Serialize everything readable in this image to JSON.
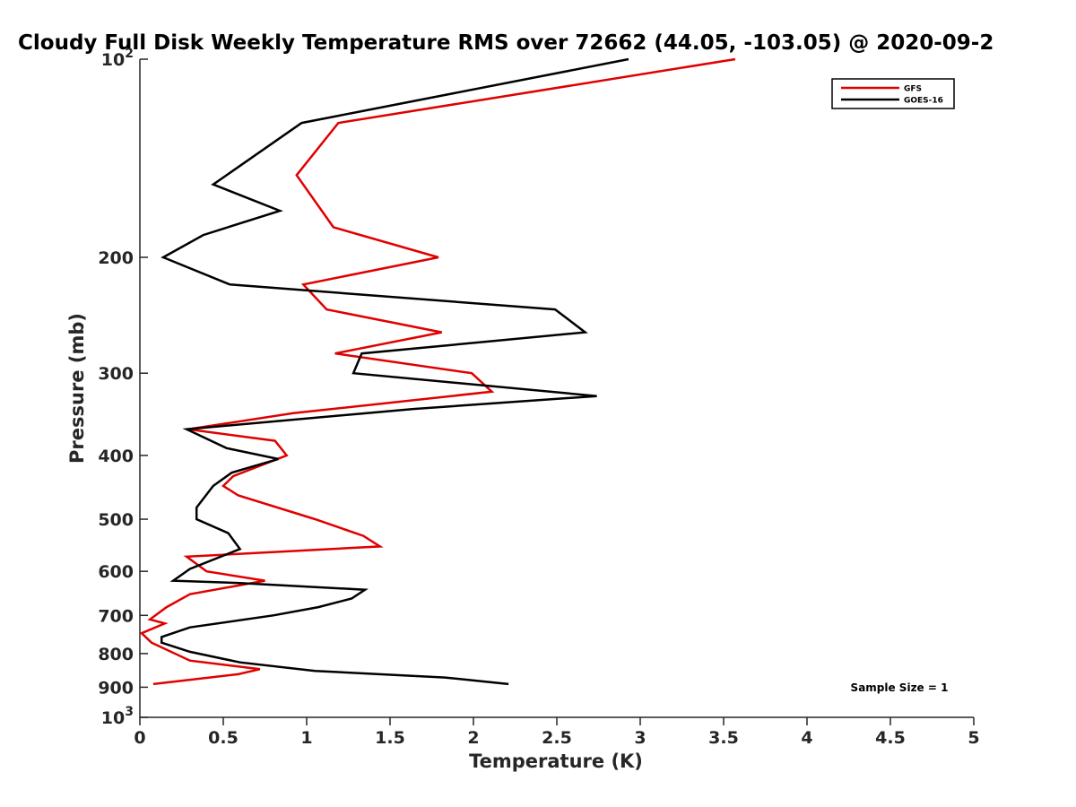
{
  "chart_data": {
    "type": "line",
    "title": "Cloudy Full Disk Weekly Temperature RMS over 72662 (44.05, -103.05) @ 2020-09-2",
    "xlabel": "Temperature (K)",
    "ylabel": "Pressure (mb)",
    "xlim": [
      0,
      5
    ],
    "ylim": [
      100,
      1000
    ],
    "y_scale": "log",
    "y_reversed": true,
    "x_ticks": [
      0,
      0.5,
      1,
      1.5,
      2,
      2.5,
      3,
      3.5,
      4,
      4.5,
      5
    ],
    "x_tick_labels": [
      "0",
      "0.5",
      "1",
      "1.5",
      "2",
      "2.5",
      "3",
      "3.5",
      "4",
      "4.5",
      "5"
    ],
    "y_ticks": [
      {
        "value": 100,
        "label": "10",
        "sup": "2"
      },
      {
        "value": 200,
        "label": "200",
        "sup": ""
      },
      {
        "value": 300,
        "label": "300",
        "sup": ""
      },
      {
        "value": 400,
        "label": "400",
        "sup": ""
      },
      {
        "value": 500,
        "label": "500",
        "sup": ""
      },
      {
        "value": 600,
        "label": "600",
        "sup": ""
      },
      {
        "value": 700,
        "label": "700",
        "sup": ""
      },
      {
        "value": 800,
        "label": "800",
        "sup": ""
      },
      {
        "value": 900,
        "label": "900",
        "sup": ""
      },
      {
        "value": 1000,
        "label": "10",
        "sup": "3"
      }
    ],
    "legend": {
      "position": "top-right"
    },
    "annotation": "Sample Size = 1",
    "series": [
      {
        "name": "GFS",
        "color": "#e00000",
        "points": [
          [
            3.57,
            100
          ],
          [
            1.19,
            125
          ],
          [
            0.94,
            150
          ],
          [
            1.16,
            180
          ],
          [
            1.79,
            200
          ],
          [
            0.98,
            220
          ],
          [
            1.12,
            240
          ],
          [
            1.81,
            260
          ],
          [
            1.17,
            280
          ],
          [
            1.99,
            300
          ],
          [
            2.11,
            320
          ],
          [
            0.92,
            345
          ],
          [
            0.29,
            365
          ],
          [
            0.81,
            380
          ],
          [
            0.88,
            400
          ],
          [
            0.56,
            430
          ],
          [
            0.5,
            445
          ],
          [
            0.59,
            460
          ],
          [
            1.05,
            500
          ],
          [
            1.34,
            530
          ],
          [
            1.44,
            550
          ],
          [
            0.28,
            570
          ],
          [
            0.4,
            600
          ],
          [
            0.75,
            620
          ],
          [
            0.3,
            650
          ],
          [
            0.16,
            680
          ],
          [
            0.06,
            710
          ],
          [
            0.15,
            720
          ],
          [
            0.01,
            745
          ],
          [
            0.07,
            770
          ],
          [
            0.3,
            820
          ],
          [
            0.72,
            845
          ],
          [
            0.59,
            860
          ],
          [
            0.08,
            890
          ]
        ]
      },
      {
        "name": "GOES-16",
        "color": "#000000",
        "points": [
          [
            2.93,
            100
          ],
          [
            0.97,
            125
          ],
          [
            0.44,
            155
          ],
          [
            0.84,
            170
          ],
          [
            0.38,
            185
          ],
          [
            0.14,
            200
          ],
          [
            0.54,
            220
          ],
          [
            2.49,
            240
          ],
          [
            2.67,
            260
          ],
          [
            1.33,
            280
          ],
          [
            1.28,
            300
          ],
          [
            2.74,
            325
          ],
          [
            1.64,
            340
          ],
          [
            0.28,
            365
          ],
          [
            0.52,
            390
          ],
          [
            0.83,
            405
          ],
          [
            0.55,
            425
          ],
          [
            0.44,
            445
          ],
          [
            0.34,
            480
          ],
          [
            0.34,
            500
          ],
          [
            0.53,
            525
          ],
          [
            0.6,
            555
          ],
          [
            0.3,
            595
          ],
          [
            0.2,
            620
          ],
          [
            0.6,
            625
          ],
          [
            1.35,
            640
          ],
          [
            1.27,
            660
          ],
          [
            1.07,
            680
          ],
          [
            0.8,
            700
          ],
          [
            0.3,
            730
          ],
          [
            0.13,
            755
          ],
          [
            0.13,
            770
          ],
          [
            0.3,
            795
          ],
          [
            0.6,
            825
          ],
          [
            1.05,
            850
          ],
          [
            1.83,
            870
          ],
          [
            2.21,
            890
          ]
        ]
      }
    ]
  }
}
